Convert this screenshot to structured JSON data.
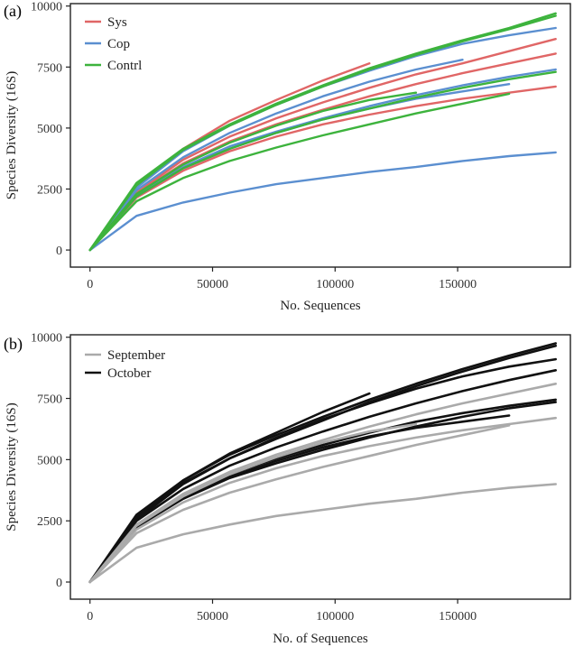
{
  "chart_data": [
    {
      "id": "a",
      "type": "line",
      "panel_label": "(a)",
      "title": "",
      "xlabel": "No. Sequences",
      "ylabel": "Species Diversity (16S)",
      "xlim": [
        -8000,
        196000
      ],
      "ylim": [
        -700,
        10100
      ],
      "xticks": [
        0,
        50000,
        100000,
        150000
      ],
      "yticks": [
        0,
        2500,
        5000,
        7500,
        10000
      ],
      "legend_position": "top-left",
      "legend": [
        {
          "name": "Sys",
          "color": "#e06666"
        },
        {
          "name": "Cop",
          "color": "#5b8fd0"
        },
        {
          "name": "Contrl",
          "color": "#3db33d"
        }
      ],
      "series": [
        {
          "name": "Sys",
          "color": "#e06666",
          "x": [
            0,
            19000,
            38000,
            57000,
            76000,
            95000,
            114000
          ],
          "y": [
            0,
            2650,
            4150,
            5300,
            6150,
            6950,
            7650
          ]
        },
        {
          "name": "Sys",
          "color": "#e06666",
          "x": [
            0,
            19000,
            38000,
            57000,
            76000,
            95000,
            114000,
            133000,
            152000,
            171000,
            190000
          ],
          "y": [
            0,
            2350,
            3700,
            4650,
            5400,
            6050,
            6650,
            7200,
            7650,
            8150,
            8650
          ]
        },
        {
          "name": "Sys",
          "color": "#e06666",
          "x": [
            0,
            19000,
            38000,
            57000,
            76000,
            95000,
            114000,
            133000,
            152000,
            171000,
            190000
          ],
          "y": [
            0,
            2300,
            3550,
            4450,
            5150,
            5750,
            6300,
            6800,
            7250,
            7650,
            8050
          ]
        },
        {
          "name": "Sys",
          "color": "#e06666",
          "x": [
            0,
            19000,
            38000,
            57000,
            76000,
            95000,
            114000,
            133000,
            152000,
            171000,
            190000
          ],
          "y": [
            0,
            2150,
            3250,
            4050,
            4650,
            5150,
            5550,
            5900,
            6200,
            6450,
            6700
          ]
        },
        {
          "name": "Cop",
          "color": "#5b8fd0",
          "x": [
            0,
            19000,
            38000,
            57000,
            76000,
            95000,
            114000,
            133000,
            152000,
            171000,
            190000
          ],
          "y": [
            0,
            2550,
            4050,
            5100,
            5950,
            6700,
            7350,
            7950,
            8450,
            8800,
            9100
          ]
        },
        {
          "name": "Cop",
          "color": "#5b8fd0",
          "x": [
            0,
            19000,
            38000,
            57000,
            76000,
            95000,
            114000,
            133000,
            152000
          ],
          "y": [
            0,
            2450,
            3800,
            4800,
            5600,
            6300,
            6900,
            7400,
            7800
          ]
        },
        {
          "name": "Cop",
          "color": "#5b8fd0",
          "x": [
            0,
            19000,
            38000,
            57000,
            76000,
            95000,
            114000,
            133000,
            152000,
            171000,
            190000
          ],
          "y": [
            0,
            2250,
            3400,
            4250,
            4850,
            5400,
            5900,
            6350,
            6750,
            7100,
            7400
          ]
        },
        {
          "name": "Cop",
          "color": "#5b8fd0",
          "x": [
            0,
            19000,
            38000,
            57000,
            76000,
            95000,
            114000,
            133000,
            152000,
            171000
          ],
          "y": [
            0,
            2200,
            3350,
            4150,
            4800,
            5350,
            5800,
            6200,
            6500,
            6800
          ]
        },
        {
          "name": "Cop",
          "color": "#5b8fd0",
          "x": [
            0,
            19000,
            38000,
            57000,
            76000,
            95000,
            114000,
            133000,
            152000,
            171000,
            190000
          ],
          "y": [
            0,
            1400,
            1950,
            2350,
            2700,
            2950,
            3200,
            3400,
            3650,
            3850,
            4000
          ]
        },
        {
          "name": "Contrl",
          "color": "#3db33d",
          "x": [
            0,
            19000,
            38000,
            57000,
            76000,
            95000,
            114000,
            133000,
            152000,
            171000,
            190000
          ],
          "y": [
            0,
            2750,
            4150,
            5150,
            6000,
            6750,
            7450,
            8050,
            8600,
            9100,
            9700
          ]
        },
        {
          "name": "Contrl",
          "color": "#3db33d",
          "x": [
            0,
            19000,
            38000,
            57000,
            76000,
            95000,
            114000,
            133000,
            152000,
            171000,
            190000
          ],
          "y": [
            0,
            2650,
            4100,
            5100,
            5950,
            6700,
            7400,
            8000,
            8550,
            9050,
            9600
          ]
        },
        {
          "name": "Contrl",
          "color": "#3db33d",
          "x": [
            0,
            19000,
            38000,
            57000,
            76000,
            95000,
            114000,
            133000
          ],
          "y": [
            0,
            2300,
            3500,
            4400,
            5100,
            5700,
            6150,
            6450
          ]
        },
        {
          "name": "Contrl",
          "color": "#3db33d",
          "x": [
            0,
            19000,
            38000,
            57000,
            76000,
            95000,
            114000,
            133000,
            152000,
            171000,
            190000
          ],
          "y": [
            0,
            2200,
            3350,
            4150,
            4800,
            5350,
            5800,
            6250,
            6650,
            7000,
            7300
          ]
        },
        {
          "name": "Contrl",
          "color": "#3db33d",
          "x": [
            0,
            19000,
            38000,
            57000,
            76000,
            95000,
            114000,
            133000,
            152000,
            171000
          ],
          "y": [
            0,
            2000,
            2950,
            3650,
            4200,
            4700,
            5150,
            5600,
            6000,
            6400
          ]
        }
      ]
    },
    {
      "id": "b",
      "type": "line",
      "panel_label": "(b)",
      "title": "",
      "xlabel": "No. of Sequences",
      "ylabel": "Species Diversity (16S)",
      "xlim": [
        -8000,
        196000
      ],
      "ylim": [
        -700,
        10100
      ],
      "xticks": [
        0,
        50000,
        100000,
        150000
      ],
      "yticks": [
        0,
        2500,
        5000,
        7500,
        10000
      ],
      "legend_position": "top-left",
      "legend": [
        {
          "name": "September",
          "color": "#aaaaaa"
        },
        {
          "name": "October",
          "color": "#111111"
        }
      ],
      "series": [
        {
          "name": "October",
          "color": "#111111",
          "x": [
            0,
            19000,
            38000,
            57000,
            76000,
            95000,
            114000,
            133000,
            152000,
            171000,
            190000
          ],
          "y": [
            0,
            2750,
            4150,
            5200,
            6000,
            6750,
            7450,
            8100,
            8700,
            9250,
            9750
          ]
        },
        {
          "name": "October",
          "color": "#111111",
          "x": [
            0,
            19000,
            38000,
            57000,
            76000,
            95000,
            114000,
            133000,
            152000,
            171000,
            190000
          ],
          "y": [
            0,
            2650,
            4050,
            5050,
            5850,
            6600,
            7350,
            8000,
            8600,
            9150,
            9650
          ]
        },
        {
          "name": "October",
          "color": "#111111",
          "x": [
            0,
            19000,
            38000,
            57000,
            76000,
            95000,
            114000
          ],
          "y": [
            0,
            2650,
            4150,
            5250,
            6100,
            6950,
            7700
          ]
        },
        {
          "name": "October",
          "color": "#111111",
          "x": [
            0,
            19000,
            38000,
            57000,
            76000,
            95000,
            114000,
            133000,
            152000,
            171000,
            190000
          ],
          "y": [
            0,
            2550,
            4000,
            5050,
            5900,
            6650,
            7300,
            7900,
            8400,
            8800,
            9100
          ]
        },
        {
          "name": "October",
          "color": "#111111",
          "x": [
            0,
            19000,
            38000,
            57000,
            76000,
            95000,
            114000,
            133000,
            152000,
            171000,
            190000
          ],
          "y": [
            0,
            2500,
            3800,
            4750,
            5500,
            6150,
            6750,
            7300,
            7800,
            8250,
            8650
          ]
        },
        {
          "name": "October",
          "color": "#111111",
          "x": [
            0,
            19000,
            38000,
            57000,
            76000,
            95000,
            114000,
            133000,
            152000,
            171000,
            190000
          ],
          "y": [
            0,
            2350,
            3500,
            4400,
            5050,
            5600,
            6100,
            6550,
            6900,
            7200,
            7450
          ]
        },
        {
          "name": "October",
          "color": "#111111",
          "x": [
            0,
            19000,
            38000,
            57000,
            76000,
            95000,
            114000,
            133000,
            152000,
            171000
          ],
          "y": [
            0,
            2300,
            3450,
            4300,
            4950,
            5500,
            5950,
            6300,
            6550,
            6800
          ]
        },
        {
          "name": "October",
          "color": "#111111",
          "x": [
            0,
            19000,
            38000,
            57000,
            76000,
            95000,
            114000,
            133000,
            152000,
            171000,
            190000
          ],
          "y": [
            0,
            2250,
            3400,
            4250,
            4850,
            5400,
            5900,
            6350,
            6750,
            7100,
            7350
          ]
        },
        {
          "name": "September",
          "color": "#aaaaaa",
          "x": [
            0,
            19000,
            38000,
            57000,
            76000,
            95000,
            114000,
            133000,
            152000,
            171000,
            190000
          ],
          "y": [
            0,
            2350,
            3600,
            4500,
            5200,
            5800,
            6350,
            6850,
            7300,
            7700,
            8100
          ]
        },
        {
          "name": "September",
          "color": "#aaaaaa",
          "x": [
            0,
            19000,
            38000,
            57000,
            76000,
            95000,
            114000,
            133000
          ],
          "y": [
            0,
            2300,
            3500,
            4400,
            5100,
            5700,
            6150,
            6450
          ]
        },
        {
          "name": "September",
          "color": "#aaaaaa",
          "x": [
            0,
            19000,
            38000,
            57000,
            76000,
            95000,
            114000,
            133000,
            152000,
            171000,
            190000
          ],
          "y": [
            0,
            2150,
            3250,
            4050,
            4650,
            5150,
            5550,
            5900,
            6200,
            6450,
            6700
          ]
        },
        {
          "name": "September",
          "color": "#aaaaaa",
          "x": [
            0,
            19000,
            38000,
            57000,
            76000,
            95000,
            114000,
            133000,
            152000,
            171000
          ],
          "y": [
            0,
            2000,
            2950,
            3650,
            4200,
            4700,
            5150,
            5600,
            6000,
            6400
          ]
        },
        {
          "name": "September",
          "color": "#aaaaaa",
          "x": [
            0,
            19000,
            38000,
            57000,
            76000,
            95000,
            114000,
            133000,
            152000,
            171000,
            190000
          ],
          "y": [
            0,
            1400,
            1950,
            2350,
            2700,
            2950,
            3200,
            3400,
            3650,
            3850,
            4000
          ]
        }
      ]
    }
  ]
}
